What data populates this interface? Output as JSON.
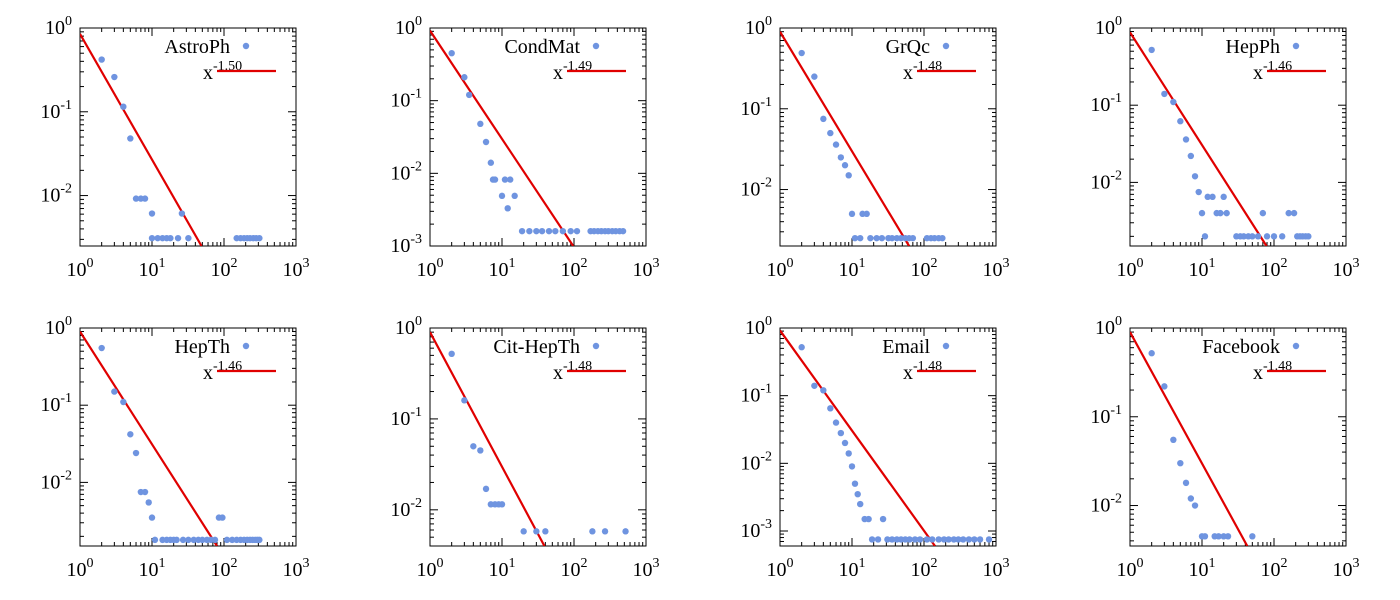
{
  "figure": {
    "description_panels": 8
  },
  "colors": {
    "points": "#6f94e0",
    "fit": "#e00000",
    "axis": "#000000"
  },
  "chart_data": [
    {
      "type": "scatter",
      "legend_label": "AstroPh",
      "fit_base": "x",
      "fit_exponent": "-1.50",
      "xlim": [
        1,
        1000
      ],
      "ylim": [
        0.0025,
        1
      ],
      "x_ticks": [
        {
          "value": 1,
          "exp": "0"
        },
        {
          "value": 10,
          "exp": "1"
        },
        {
          "value": 100,
          "exp": "2"
        },
        {
          "value": 1000,
          "exp": "3"
        }
      ],
      "y_ticks": [
        {
          "value": 0.01,
          "exp": "-2"
        },
        {
          "value": 0.1,
          "exp": "-1"
        },
        {
          "value": 1,
          "exp": "0"
        }
      ],
      "fit": {
        "exponent": -1.5,
        "amplitude": 0.85
      },
      "points": [
        [
          2,
          0.42
        ],
        [
          3,
          0.26
        ],
        [
          4,
          0.115
        ],
        [
          5,
          0.048
        ],
        [
          6,
          0.0092
        ],
        [
          7,
          0.0092
        ],
        [
          8,
          0.0092
        ],
        [
          10,
          0.0061
        ],
        [
          10,
          0.0031
        ],
        [
          12,
          0.0031
        ],
        [
          14,
          0.0031
        ],
        [
          16,
          0.0031
        ],
        [
          18,
          0.0031
        ],
        [
          23,
          0.0031
        ],
        [
          26,
          0.0061
        ],
        [
          32,
          0.0031
        ],
        [
          150,
          0.0031
        ],
        [
          170,
          0.0031
        ],
        [
          190,
          0.0031
        ],
        [
          210,
          0.0031
        ],
        [
          230,
          0.0031
        ],
        [
          255,
          0.0031
        ],
        [
          280,
          0.0031
        ],
        [
          310,
          0.0031
        ]
      ]
    },
    {
      "type": "scatter",
      "legend_label": "CondMat",
      "fit_base": "x",
      "fit_exponent": "-1.49",
      "xlim": [
        1,
        1000
      ],
      "ylim": [
        0.001,
        1
      ],
      "x_ticks": [
        {
          "value": 1,
          "exp": "0"
        },
        {
          "value": 10,
          "exp": "1"
        },
        {
          "value": 100,
          "exp": "2"
        },
        {
          "value": 1000,
          "exp": "3"
        }
      ],
      "y_ticks": [
        {
          "value": 0.001,
          "exp": "-3"
        },
        {
          "value": 0.01,
          "exp": "-2"
        },
        {
          "value": 0.1,
          "exp": "-1"
        },
        {
          "value": 1,
          "exp": "0"
        }
      ],
      "fit": {
        "exponent": -1.49,
        "amplitude": 0.92
      },
      "points": [
        [
          2,
          0.45
        ],
        [
          3,
          0.21
        ],
        [
          3.5,
          0.12
        ],
        [
          5,
          0.048
        ],
        [
          6,
          0.027
        ],
        [
          7,
          0.014
        ],
        [
          7.5,
          0.0082
        ],
        [
          8,
          0.0082
        ],
        [
          10,
          0.0049
        ],
        [
          11,
          0.0082
        ],
        [
          12,
          0.0033
        ],
        [
          13,
          0.0082
        ],
        [
          15,
          0.0049
        ],
        [
          19,
          0.0016
        ],
        [
          24,
          0.0016
        ],
        [
          30,
          0.0016
        ],
        [
          36,
          0.0016
        ],
        [
          45,
          0.0016
        ],
        [
          55,
          0.0016
        ],
        [
          70,
          0.0016
        ],
        [
          90,
          0.0016
        ],
        [
          110,
          0.0016
        ],
        [
          170,
          0.0016
        ],
        [
          190,
          0.0016
        ],
        [
          215,
          0.0016
        ],
        [
          240,
          0.0016
        ],
        [
          270,
          0.0016
        ],
        [
          300,
          0.0016
        ],
        [
          340,
          0.0016
        ],
        [
          380,
          0.0016
        ],
        [
          430,
          0.0016
        ],
        [
          480,
          0.0016
        ]
      ]
    },
    {
      "type": "scatter",
      "legend_label": "GrQc",
      "fit_base": "x",
      "fit_exponent": "-1.48",
      "xlim": [
        1,
        1000
      ],
      "ylim": [
        0.002,
        1
      ],
      "x_ticks": [
        {
          "value": 1,
          "exp": "0"
        },
        {
          "value": 10,
          "exp": "1"
        },
        {
          "value": 100,
          "exp": "2"
        },
        {
          "value": 1000,
          "exp": "3"
        }
      ],
      "y_ticks": [
        {
          "value": 0.01,
          "exp": "-2"
        },
        {
          "value": 0.1,
          "exp": "-1"
        },
        {
          "value": 1,
          "exp": "0"
        }
      ],
      "fit": {
        "exponent": -1.48,
        "amplitude": 0.9
      },
      "points": [
        [
          2,
          0.49
        ],
        [
          3,
          0.25
        ],
        [
          4,
          0.075
        ],
        [
          5,
          0.05
        ],
        [
          6,
          0.036
        ],
        [
          7,
          0.025
        ],
        [
          8,
          0.02
        ],
        [
          9,
          0.015
        ],
        [
          10,
          0.005
        ],
        [
          11,
          0.0025
        ],
        [
          13,
          0.0025
        ],
        [
          14,
          0.005
        ],
        [
          16,
          0.005
        ],
        [
          18,
          0.0025
        ],
        [
          22,
          0.0025
        ],
        [
          26,
          0.0025
        ],
        [
          32,
          0.0025
        ],
        [
          36,
          0.0025
        ],
        [
          42,
          0.0025
        ],
        [
          48,
          0.0025
        ],
        [
          55,
          0.0025
        ],
        [
          62,
          0.0025
        ],
        [
          70,
          0.0025
        ],
        [
          110,
          0.0025
        ],
        [
          125,
          0.0025
        ],
        [
          140,
          0.0025
        ],
        [
          160,
          0.0025
        ],
        [
          180,
          0.0025
        ]
      ]
    },
    {
      "type": "scatter",
      "legend_label": "HepPh",
      "fit_base": "x",
      "fit_exponent": "-1.46",
      "xlim": [
        1,
        1000
      ],
      "ylim": [
        0.0015,
        1
      ],
      "x_ticks": [
        {
          "value": 1,
          "exp": "0"
        },
        {
          "value": 10,
          "exp": "1"
        },
        {
          "value": 100,
          "exp": "2"
        },
        {
          "value": 1000,
          "exp": "3"
        }
      ],
      "y_ticks": [
        {
          "value": 0.01,
          "exp": "-2"
        },
        {
          "value": 0.1,
          "exp": "-1"
        },
        {
          "value": 1,
          "exp": "0"
        }
      ],
      "fit": {
        "exponent": -1.46,
        "amplitude": 0.88
      },
      "points": [
        [
          2,
          0.52
        ],
        [
          3,
          0.14
        ],
        [
          4,
          0.11
        ],
        [
          5,
          0.062
        ],
        [
          6,
          0.036
        ],
        [
          7,
          0.022
        ],
        [
          8,
          0.012
        ],
        [
          9,
          0.0075
        ],
        [
          10,
          0.004
        ],
        [
          11,
          0.002
        ],
        [
          12,
          0.0065
        ],
        [
          14,
          0.0065
        ],
        [
          16,
          0.004
        ],
        [
          18,
          0.004
        ],
        [
          20,
          0.0065
        ],
        [
          22,
          0.004
        ],
        [
          30,
          0.002
        ],
        [
          34,
          0.002
        ],
        [
          38,
          0.002
        ],
        [
          44,
          0.002
        ],
        [
          50,
          0.002
        ],
        [
          60,
          0.002
        ],
        [
          70,
          0.004
        ],
        [
          80,
          0.002
        ],
        [
          100,
          0.002
        ],
        [
          130,
          0.002
        ],
        [
          160,
          0.004
        ],
        [
          190,
          0.004
        ],
        [
          210,
          0.002
        ],
        [
          230,
          0.002
        ],
        [
          250,
          0.002
        ],
        [
          275,
          0.002
        ],
        [
          300,
          0.002
        ]
      ]
    },
    {
      "type": "scatter",
      "legend_label": "HepTh",
      "fit_base": "x",
      "fit_exponent": "-1.46",
      "xlim": [
        1,
        1000
      ],
      "ylim": [
        0.0015,
        1
      ],
      "x_ticks": [
        {
          "value": 1,
          "exp": "0"
        },
        {
          "value": 10,
          "exp": "1"
        },
        {
          "value": 100,
          "exp": "2"
        },
        {
          "value": 1000,
          "exp": "3"
        }
      ],
      "y_ticks": [
        {
          "value": 0.01,
          "exp": "-2"
        },
        {
          "value": 0.1,
          "exp": "-1"
        },
        {
          "value": 1,
          "exp": "0"
        }
      ],
      "fit": {
        "exponent": -1.46,
        "amplitude": 0.9
      },
      "points": [
        [
          2,
          0.55
        ],
        [
          3,
          0.15
        ],
        [
          4,
          0.11
        ],
        [
          5,
          0.042
        ],
        [
          6,
          0.024
        ],
        [
          7,
          0.0075
        ],
        [
          8,
          0.0075
        ],
        [
          9,
          0.0055
        ],
        [
          10,
          0.0035
        ],
        [
          11,
          0.0018
        ],
        [
          14,
          0.0018
        ],
        [
          16,
          0.0018
        ],
        [
          18,
          0.0018
        ],
        [
          20,
          0.0018
        ],
        [
          22,
          0.0018
        ],
        [
          27,
          0.0018
        ],
        [
          32,
          0.0018
        ],
        [
          38,
          0.0018
        ],
        [
          44,
          0.0018
        ],
        [
          50,
          0.0018
        ],
        [
          58,
          0.0018
        ],
        [
          66,
          0.0018
        ],
        [
          75,
          0.0018
        ],
        [
          85,
          0.0035
        ],
        [
          95,
          0.0035
        ],
        [
          110,
          0.0018
        ],
        [
          130,
          0.0018
        ],
        [
          150,
          0.0018
        ],
        [
          170,
          0.0018
        ],
        [
          190,
          0.0018
        ],
        [
          210,
          0.0018
        ],
        [
          230,
          0.0018
        ],
        [
          250,
          0.0018
        ],
        [
          270,
          0.0018
        ],
        [
          290,
          0.0018
        ],
        [
          310,
          0.0018
        ]
      ]
    },
    {
      "type": "scatter",
      "legend_label": "Cit-HepTh",
      "fit_base": "x",
      "fit_exponent": "-1.48",
      "xlim": [
        1,
        1000
      ],
      "ylim": [
        0.004,
        1
      ],
      "x_ticks": [
        {
          "value": 1,
          "exp": "0"
        },
        {
          "value": 10,
          "exp": "1"
        },
        {
          "value": 100,
          "exp": "2"
        },
        {
          "value": 1000,
          "exp": "3"
        }
      ],
      "y_ticks": [
        {
          "value": 0.01,
          "exp": "-2"
        },
        {
          "value": 0.1,
          "exp": "-1"
        },
        {
          "value": 1,
          "exp": "0"
        }
      ],
      "fit": {
        "exponent": -1.48,
        "amplitude": 0.9
      },
      "points": [
        [
          2,
          0.52
        ],
        [
          3,
          0.16
        ],
        [
          4,
          0.05
        ],
        [
          5,
          0.045
        ],
        [
          6,
          0.017
        ],
        [
          7,
          0.0115
        ],
        [
          8,
          0.0115
        ],
        [
          9,
          0.0115
        ],
        [
          10,
          0.0115
        ],
        [
          20,
          0.0058
        ],
        [
          30,
          0.0058
        ],
        [
          40,
          0.0058
        ],
        [
          180,
          0.0058
        ],
        [
          270,
          0.0058
        ],
        [
          520,
          0.0058
        ]
      ]
    },
    {
      "type": "scatter",
      "legend_label": "Email",
      "fit_base": "x",
      "fit_exponent": "-1.48",
      "xlim": [
        1,
        1000
      ],
      "ylim": [
        0.0006,
        1
      ],
      "x_ticks": [
        {
          "value": 1,
          "exp": "0"
        },
        {
          "value": 10,
          "exp": "1"
        },
        {
          "value": 100,
          "exp": "2"
        },
        {
          "value": 1000,
          "exp": "3"
        }
      ],
      "y_ticks": [
        {
          "value": 0.001,
          "exp": "-3"
        },
        {
          "value": 0.01,
          "exp": "-2"
        },
        {
          "value": 0.1,
          "exp": "-1"
        },
        {
          "value": 1,
          "exp": "0"
        }
      ],
      "fit": {
        "exponent": -1.48,
        "amplitude": 0.92
      },
      "points": [
        [
          2,
          0.52
        ],
        [
          3,
          0.14
        ],
        [
          4,
          0.12
        ],
        [
          5,
          0.065
        ],
        [
          6,
          0.04
        ],
        [
          7,
          0.028
        ],
        [
          8,
          0.02
        ],
        [
          9,
          0.014
        ],
        [
          10,
          0.009
        ],
        [
          11,
          0.005
        ],
        [
          12,
          0.0035
        ],
        [
          13,
          0.0025
        ],
        [
          15,
          0.0015
        ],
        [
          17,
          0.0015
        ],
        [
          19,
          0.00075
        ],
        [
          23,
          0.00075
        ],
        [
          27,
          0.0015
        ],
        [
          31,
          0.00075
        ],
        [
          36,
          0.00075
        ],
        [
          42,
          0.00075
        ],
        [
          48,
          0.00075
        ],
        [
          55,
          0.00075
        ],
        [
          63,
          0.00075
        ],
        [
          75,
          0.00075
        ],
        [
          88,
          0.00075
        ],
        [
          110,
          0.00075
        ],
        [
          130,
          0.00075
        ],
        [
          160,
          0.00075
        ],
        [
          190,
          0.00075
        ],
        [
          220,
          0.00075
        ],
        [
          260,
          0.00075
        ],
        [
          300,
          0.00075
        ],
        [
          350,
          0.00075
        ],
        [
          420,
          0.00075
        ],
        [
          500,
          0.00075
        ],
        [
          600,
          0.00075
        ],
        [
          800,
          0.00075
        ]
      ]
    },
    {
      "type": "scatter",
      "legend_label": "Facebook",
      "fit_base": "x",
      "fit_exponent": "-1.48",
      "xlim": [
        1,
        1000
      ],
      "ylim": [
        0.0035,
        1
      ],
      "x_ticks": [
        {
          "value": 1,
          "exp": "0"
        },
        {
          "value": 10,
          "exp": "1"
        },
        {
          "value": 100,
          "exp": "2"
        },
        {
          "value": 1000,
          "exp": "3"
        }
      ],
      "y_ticks": [
        {
          "value": 0.01,
          "exp": "-2"
        },
        {
          "value": 0.1,
          "exp": "-1"
        },
        {
          "value": 1,
          "exp": "0"
        }
      ],
      "fit": {
        "exponent": -1.48,
        "amplitude": 0.9
      },
      "points": [
        [
          2,
          0.52
        ],
        [
          3,
          0.22
        ],
        [
          4,
          0.055
        ],
        [
          5,
          0.03
        ],
        [
          6,
          0.018
        ],
        [
          7,
          0.012
        ],
        [
          8,
          0.01
        ],
        [
          10,
          0.0045
        ],
        [
          11,
          0.0045
        ],
        [
          15,
          0.0045
        ],
        [
          17,
          0.0045
        ],
        [
          20,
          0.0045
        ],
        [
          23,
          0.0045
        ],
        [
          50,
          0.0045
        ]
      ]
    }
  ]
}
